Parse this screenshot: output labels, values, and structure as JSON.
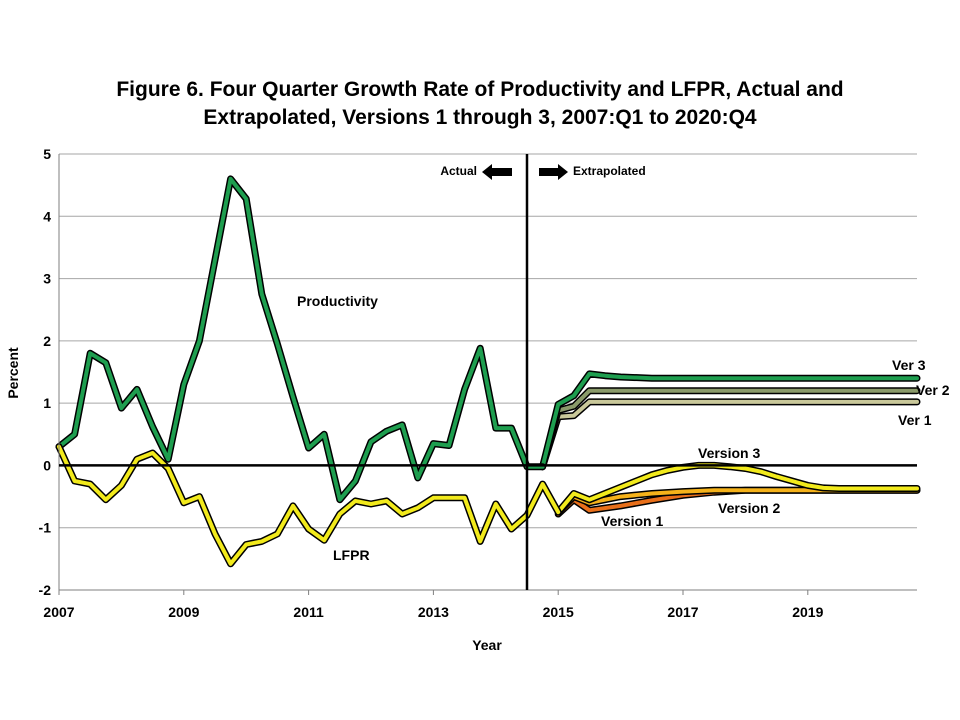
{
  "chart_data": {
    "type": "line",
    "title_line1": "Figure 6. Four Quarter Growth Rate of Productivity and LFPR, Actual and",
    "title_line2": "Extrapolated, Versions 1 through 3, 2007:Q1 to 2020:Q4",
    "xlabel": "Year",
    "ylabel": "Percent",
    "xlim": [
      2007,
      2020.75
    ],
    "ylim": [
      -2,
      5
    ],
    "xticks": [
      2007,
      2009,
      2011,
      2013,
      2015,
      2017,
      2019
    ],
    "yticks": [
      -2,
      -1,
      0,
      1,
      2,
      3,
      4,
      5
    ],
    "grid": true,
    "divider_x": 2014.5,
    "annotations": {
      "actual": "Actual",
      "extrapolated": "Extrapolated",
      "productivity": "Productivity",
      "lfpr": "LFPR",
      "ver3_short": "Ver 3",
      "ver2_short": "Ver 2",
      "ver1_short": "Ver 1",
      "version3": "Version 3",
      "version2": "Version 2",
      "version1": "Version 1"
    },
    "colors": {
      "productivity": "#1e9e4f",
      "lfpr": "#f2ea1c",
      "ver2_prod": "#8a9a6a",
      "ver1_prod": "#c9c89a",
      "ver1_lfpr": "#e86f1a",
      "ver2_lfpr": "#f5b21a",
      "outline": "#000000"
    },
    "series": [
      {
        "key": "productivity",
        "x": [
          2007,
          2007.25,
          2007.5,
          2007.75,
          2008,
          2008.25,
          2008.5,
          2008.75,
          2009,
          2009.25,
          2009.5,
          2009.75,
          2010,
          2010.25,
          2010.5,
          2010.75,
          2011,
          2011.25,
          2011.5,
          2011.75,
          2012,
          2012.25,
          2012.5,
          2012.75,
          2013,
          2013.25,
          2013.5,
          2013.75,
          2014,
          2014.25,
          2014.5,
          2014.75
        ],
        "y": [
          0.3,
          0.5,
          1.8,
          1.65,
          0.92,
          1.22,
          0.62,
          0.1,
          1.3,
          2.0,
          3.3,
          4.6,
          4.28,
          2.75,
          1.95,
          1.1,
          0.28,
          0.5,
          -0.55,
          -0.25,
          0.38,
          0.55,
          0.65,
          -0.2,
          0.35,
          0.32,
          1.22,
          1.88,
          0.6,
          0.6,
          -0.02,
          -0.02
        ]
      },
      {
        "key": "ver3_prod",
        "x": [
          2014.75,
          2015,
          2015.25,
          2015.5,
          2015.75,
          2016,
          2016.5,
          2017,
          2018,
          2019,
          2020,
          2020.75
        ],
        "y": [
          -0.02,
          0.98,
          1.12,
          1.47,
          1.44,
          1.42,
          1.4,
          1.4,
          1.4,
          1.4,
          1.4,
          1.4
        ]
      },
      {
        "key": "ver2_prod",
        "x": [
          2014.75,
          2015,
          2015.25,
          2015.5,
          2016,
          2017,
          2018,
          2019,
          2020,
          2020.75
        ],
        "y": [
          -0.02,
          0.88,
          0.95,
          1.2,
          1.2,
          1.2,
          1.2,
          1.2,
          1.2,
          1.2
        ]
      },
      {
        "key": "ver1_prod",
        "x": [
          2014.75,
          2015,
          2015.25,
          2015.5,
          2016,
          2017,
          2018,
          2019,
          2020,
          2020.75
        ],
        "y": [
          -0.02,
          0.78,
          0.8,
          1.02,
          1.02,
          1.02,
          1.02,
          1.02,
          1.02,
          1.02
        ]
      },
      {
        "key": "lfpr",
        "x": [
          2007,
          2007.25,
          2007.5,
          2007.75,
          2008,
          2008.25,
          2008.5,
          2008.75,
          2009,
          2009.25,
          2009.5,
          2009.75,
          2010,
          2010.25,
          2010.5,
          2010.75,
          2011,
          2011.25,
          2011.5,
          2011.75,
          2012,
          2012.25,
          2012.5,
          2012.75,
          2013,
          2013.25,
          2013.5,
          2013.75,
          2014,
          2014.25,
          2014.5,
          2014.75,
          2015
        ],
        "y": [
          0.3,
          -0.25,
          -0.3,
          -0.55,
          -0.32,
          0.1,
          0.2,
          -0.05,
          -0.6,
          -0.5,
          -1.1,
          -1.58,
          -1.27,
          -1.22,
          -1.1,
          -0.65,
          -1.02,
          -1.2,
          -0.78,
          -0.57,
          -0.62,
          -0.57,
          -0.78,
          -0.68,
          -0.52,
          -0.52,
          -0.52,
          -1.22,
          -0.62,
          -1.02,
          -0.8,
          -0.3,
          -0.75
        ]
      },
      {
        "key": "ver3_lfpr",
        "x": [
          2015,
          2015.25,
          2015.5,
          2015.75,
          2016,
          2016.25,
          2016.5,
          2016.75,
          2017,
          2017.25,
          2017.5,
          2017.75,
          2018,
          2018.25,
          2018.5,
          2018.75,
          2019,
          2019.25,
          2019.5,
          2019.75,
          2020,
          2020.25,
          2020.5,
          2020.75
        ],
        "y": [
          -0.75,
          -0.45,
          -0.55,
          -0.45,
          -0.35,
          -0.25,
          -0.15,
          -0.08,
          -0.03,
          0.0,
          0.0,
          -0.02,
          -0.05,
          -0.1,
          -0.18,
          -0.25,
          -0.32,
          -0.36,
          -0.37,
          -0.37,
          -0.37,
          -0.37,
          -0.37,
          -0.37
        ]
      },
      {
        "key": "ver2_lfpr",
        "x": [
          2015,
          2015.25,
          2015.5,
          2015.75,
          2016,
          2016.5,
          2017,
          2017.5,
          2018,
          2018.5,
          2019,
          2020,
          2020.75
        ],
        "y": [
          -0.75,
          -0.5,
          -0.6,
          -0.55,
          -0.5,
          -0.45,
          -0.42,
          -0.4,
          -0.4,
          -0.4,
          -0.4,
          -0.4,
          -0.4
        ]
      },
      {
        "key": "ver1_lfpr",
        "x": [
          2015,
          2015.25,
          2015.5,
          2016,
          2016.5,
          2017,
          2017.5,
          2018,
          2018.5,
          2019,
          2020,
          2020.75
        ],
        "y": [
          -0.78,
          -0.55,
          -0.72,
          -0.65,
          -0.56,
          -0.48,
          -0.43,
          -0.4,
          -0.4,
          -0.4,
          -0.4,
          -0.4
        ]
      }
    ]
  }
}
